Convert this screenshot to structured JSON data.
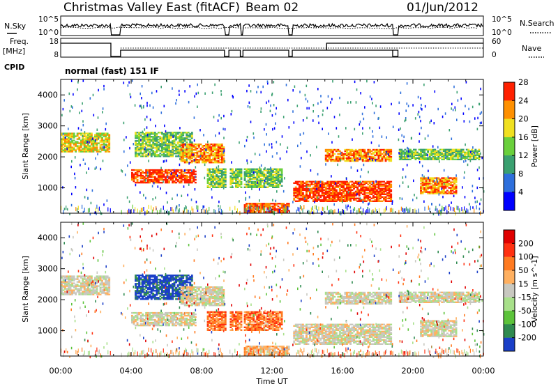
{
  "header": {
    "title": "Christmas Valley East (fitACF)",
    "beam": "Beam 02",
    "date": "01/Jun/2012"
  },
  "strips": {
    "nsky_label": "N.Sky",
    "nsky_ticks": [
      "10^5",
      "10^0"
    ],
    "nsearch_label": "N.Search",
    "nsearch_ticks": [
      "10^5",
      "10^0"
    ],
    "freq_label": "Freq.",
    "freq_unit": "[MHz]",
    "freq_ticks": [
      "18",
      "8"
    ],
    "nave_label": "Nave",
    "nave_ticks": [
      "60",
      "0"
    ],
    "cpid_label": "CPID",
    "cpid_value": "normal (fast) 151 IF"
  },
  "chart_data": [
    {
      "type": "heatmap",
      "parameter": "Power",
      "ylabel": "Slant Range [km]",
      "xlabel": "Time UT",
      "x_ticks": [
        "00:00",
        "04:00",
        "08:00",
        "12:00",
        "16:00",
        "20:00",
        "00:00"
      ],
      "y_ticks": [
        1000,
        2000,
        3000,
        4000
      ],
      "ylim": [
        180,
        4500
      ],
      "colorbar": {
        "label": "Power [dB]",
        "ticks": [
          "4",
          "8",
          "12",
          "16",
          "20",
          "24",
          "28"
        ],
        "colors": [
          "#0000ff",
          "#2e6fdc",
          "#3aa070",
          "#6ad03c",
          "#f0e020",
          "#ff9000",
          "#ff2000"
        ]
      }
    },
    {
      "type": "heatmap",
      "parameter": "Velocity",
      "ylabel": "Slant Range [km]",
      "xlabel": "Time UT",
      "x_ticks": [
        "00:00",
        "04:00",
        "08:00",
        "12:00",
        "16:00",
        "20:00",
        "00:00"
      ],
      "y_ticks": [
        1000,
        2000,
        3000,
        4000
      ],
      "ylim": [
        180,
        4500
      ],
      "colorbar": {
        "label": "Velocity [m s^-1]",
        "ticks": [
          "200",
          "100",
          "50",
          "15",
          "-15",
          "-50",
          "-100",
          "-200"
        ],
        "colors": [
          "#1a3fc8",
          "#2f8a50",
          "#5cc33a",
          "#a8e08a",
          "#c8c8c0",
          "#ffb060",
          "#ff7a20",
          "#ff3010",
          "#e00000"
        ]
      }
    }
  ]
}
